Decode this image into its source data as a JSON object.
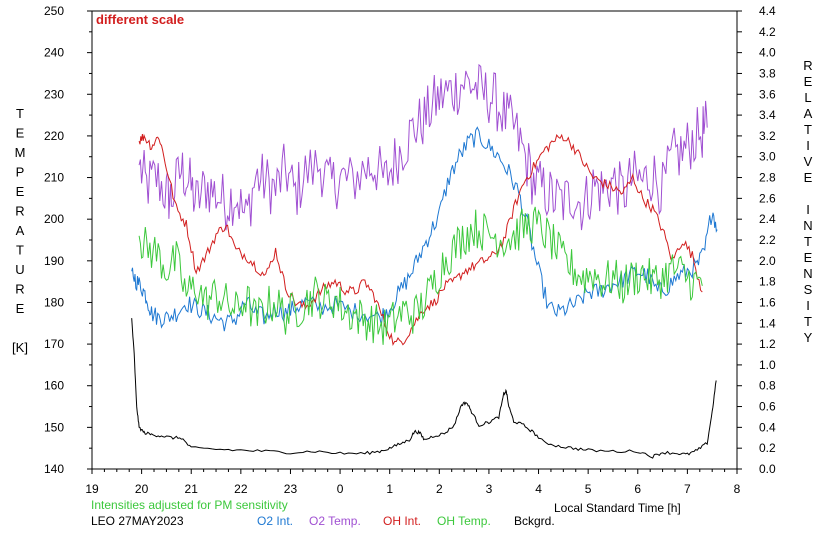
{
  "chart_data": {
    "type": "line",
    "note": "different scale",
    "left_axis": {
      "label_letters": [
        "T",
        "E",
        "M",
        "P",
        "E",
        "R",
        "A",
        "T",
        "U",
        "R",
        "E",
        "",
        "[K]"
      ],
      "range": [
        140,
        250
      ],
      "ticks": [
        140,
        150,
        160,
        170,
        180,
        190,
        200,
        210,
        220,
        230,
        240,
        250
      ]
    },
    "right_axis": {
      "label_letters": [
        "R",
        "E",
        "L",
        "A",
        "T",
        "I",
        "V",
        "E",
        "",
        "I",
        "N",
        "T",
        "E",
        "N",
        "S",
        "I",
        "T",
        "Y"
      ],
      "range": [
        0.0,
        4.4
      ],
      "ticks": [
        "0.0",
        "0.2",
        "0.4",
        "0.6",
        "0.8",
        "1.0",
        "1.2",
        "1.4",
        "1.6",
        "1.8",
        "2.0",
        "2.2",
        "2.4",
        "2.6",
        "2.8",
        "3.0",
        "3.2",
        "3.4",
        "3.6",
        "3.8",
        "4.0",
        "4.2",
        "4.4"
      ]
    },
    "x_axis": {
      "label": "Local Standard Time [h]",
      "range": [
        19,
        32
      ],
      "tick_labels": [
        "19",
        "20",
        "21",
        "22",
        "23",
        "0",
        "1",
        "2",
        "3",
        "4",
        "5",
        "6",
        "7",
        "8"
      ]
    },
    "footer": {
      "pm_note": "Intensities adjusted for PM sensitivity",
      "station_date": "LEO 27MAY2023",
      "legend": [
        {
          "name": "O2 Int.",
          "color": "#1e78d2"
        },
        {
          "name": "O2 Temp.",
          "color": "#a050d2"
        },
        {
          "name": "OH Int.",
          "color": "#d21e1e"
        },
        {
          "name": "OH Temp.",
          "color": "#3cc83c"
        },
        {
          "name": "Bckgrd.",
          "color": "#000000"
        }
      ]
    },
    "series": [
      {
        "name": "O2 Temp.",
        "axis": "left",
        "color": "#a050d2",
        "x": [
          19.95,
          20.1,
          20.3,
          20.5,
          20.6,
          20.8,
          20.95,
          21.1,
          21.3,
          21.5,
          21.7,
          21.9,
          22.1,
          22.3,
          22.5,
          22.7,
          22.9,
          23.1,
          23.3,
          23.6,
          23.8,
          24.0,
          24.2,
          24.5,
          24.7,
          24.9,
          25.1,
          25.3,
          25.5,
          25.7,
          25.9,
          26.1,
          26.3,
          26.5,
          26.7,
          26.9,
          27.1,
          27.3,
          27.5,
          27.7,
          27.9,
          28.1,
          28.3,
          28.5,
          28.7,
          28.9,
          29.1,
          29.3,
          29.5,
          29.7,
          29.9,
          30.1,
          30.3,
          30.5,
          30.7,
          30.9,
          31.1,
          31.3,
          31.4
        ],
        "y": [
          213,
          208,
          210,
          206,
          205,
          212,
          209,
          204,
          208,
          206,
          204,
          206,
          200,
          210,
          209,
          207,
          212,
          206,
          211,
          213,
          208,
          210,
          209,
          212,
          213,
          209,
          214,
          218,
          222,
          224,
          228,
          230,
          231,
          233,
          232,
          230,
          229,
          225,
          222,
          216,
          209,
          207,
          205,
          204,
          206,
          203,
          208,
          207,
          209,
          206,
          210,
          209,
          211,
          207,
          215,
          216,
          219,
          221,
          222
        ]
      },
      {
        "name": "O2 Int.",
        "axis": "right",
        "color": "#1e78d2",
        "x": [
          19.8,
          19.9,
          20.0,
          20.1,
          20.2,
          20.35,
          20.5,
          20.7,
          20.9,
          21.1,
          21.3,
          21.5,
          21.7,
          21.9,
          22.1,
          22.3,
          22.5,
          22.7,
          22.9,
          23.1,
          23.3,
          23.6,
          23.9,
          24.2,
          24.5,
          24.8,
          25.0,
          25.2,
          25.4,
          25.6,
          25.8,
          26.0,
          26.2,
          26.4,
          26.6,
          26.8,
          27.0,
          27.2,
          27.4,
          27.6,
          27.8,
          28.0,
          28.2,
          28.4,
          28.6,
          28.8,
          29.0,
          29.2,
          29.4,
          29.6,
          29.8,
          30.0,
          30.2,
          30.4,
          30.6,
          30.8,
          31.0,
          31.2,
          31.35,
          31.5,
          31.6
        ],
        "y": [
          1.9,
          1.8,
          1.75,
          1.65,
          1.5,
          1.45,
          1.45,
          1.5,
          1.6,
          1.55,
          1.5,
          1.45,
          1.4,
          1.45,
          1.6,
          1.5,
          1.45,
          1.55,
          1.5,
          1.55,
          1.6,
          1.55,
          1.58,
          1.52,
          1.5,
          1.45,
          1.55,
          1.7,
          1.85,
          2.05,
          2.25,
          2.45,
          2.8,
          3.0,
          3.15,
          3.2,
          3.1,
          3.0,
          2.85,
          2.65,
          2.3,
          1.9,
          1.55,
          1.5,
          1.55,
          1.6,
          1.7,
          1.7,
          1.75,
          1.8,
          1.85,
          1.9,
          1.85,
          1.7,
          1.75,
          1.85,
          1.9,
          1.95,
          2.1,
          2.5,
          2.3
        ]
      },
      {
        "name": "OH Int.",
        "axis": "right",
        "color": "#d21e1e",
        "x": [
          19.95,
          20.05,
          20.2,
          20.35,
          20.5,
          20.7,
          20.9,
          21.1,
          21.3,
          21.5,
          21.7,
          21.9,
          22.1,
          22.3,
          22.5,
          22.7,
          22.9,
          23.1,
          23.3,
          23.5,
          23.7,
          23.9,
          24.1,
          24.3,
          24.5,
          24.7,
          24.9,
          25.1,
          25.3,
          25.5,
          25.7,
          25.9,
          26.1,
          26.3,
          26.5,
          26.7,
          26.9,
          27.1,
          27.3,
          27.5,
          27.7,
          27.9,
          28.1,
          28.3,
          28.5,
          28.7,
          28.9,
          29.1,
          29.3,
          29.5,
          29.7,
          29.9,
          30.1,
          30.3,
          30.5,
          30.7,
          30.9,
          31.1,
          31.3
        ],
        "y": [
          3.15,
          3.2,
          3.1,
          3.2,
          2.9,
          2.5,
          2.35,
          1.9,
          2.05,
          2.25,
          2.35,
          2.1,
          2.05,
          1.95,
          1.85,
          2.1,
          1.75,
          1.6,
          1.55,
          1.65,
          1.75,
          1.8,
          1.72,
          1.7,
          1.8,
          1.65,
          1.4,
          1.2,
          1.25,
          1.4,
          1.55,
          1.6,
          1.75,
          1.8,
          1.9,
          1.95,
          2.0,
          2.05,
          2.2,
          2.5,
          2.75,
          2.9,
          3.05,
          3.15,
          3.2,
          3.1,
          2.95,
          2.8,
          2.75,
          2.7,
          2.65,
          2.8,
          2.6,
          2.5,
          2.3,
          2.0,
          2.2,
          2.05,
          1.7
        ]
      },
      {
        "name": "OH Temp.",
        "axis": "left",
        "color": "#3cc83c",
        "x": [
          19.95,
          20.1,
          20.3,
          20.5,
          20.7,
          20.9,
          21.1,
          21.3,
          21.5,
          21.7,
          21.9,
          22.1,
          22.3,
          22.5,
          22.7,
          22.9,
          23.1,
          23.3,
          23.5,
          23.7,
          23.9,
          24.1,
          24.3,
          24.5,
          24.7,
          24.9,
          25.1,
          25.3,
          25.5,
          25.7,
          25.9,
          26.1,
          26.3,
          26.5,
          26.7,
          26.9,
          27.1,
          27.3,
          27.5,
          27.7,
          27.9,
          28.1,
          28.3,
          28.5,
          28.7,
          28.9,
          29.1,
          29.3,
          29.5,
          29.7,
          29.9,
          30.1,
          30.3,
          30.5,
          30.7,
          30.9,
          31.1,
          31.3
        ],
        "y": [
          196,
          193,
          192,
          188,
          190,
          182,
          184,
          180,
          182,
          180,
          178,
          181,
          176,
          179,
          180,
          177,
          178,
          180,
          182,
          180,
          181,
          178,
          177,
          176,
          175,
          174,
          176,
          178,
          177,
          180,
          185,
          190,
          193,
          196,
          198,
          197,
          196,
          195,
          196,
          198,
          199,
          197,
          194,
          190,
          188,
          186,
          187,
          185,
          186,
          184,
          186,
          187,
          185,
          186,
          188,
          187,
          185,
          184
        ]
      },
      {
        "name": "Bckgrd.",
        "axis": "right",
        "color": "#000000",
        "x": [
          19.8,
          19.85,
          19.9,
          19.95,
          20.05,
          20.2,
          20.4,
          20.6,
          20.8,
          21.0,
          21.5,
          22.0,
          22.5,
          23.0,
          23.5,
          24.0,
          24.5,
          24.8,
          25.0,
          25.2,
          25.4,
          25.5,
          25.6,
          25.7,
          25.9,
          26.1,
          26.3,
          26.45,
          26.55,
          26.65,
          26.8,
          27.0,
          27.2,
          27.3,
          27.35,
          27.4,
          27.5,
          27.7,
          27.9,
          28.1,
          28.4,
          28.7,
          29.0,
          29.5,
          30.0,
          30.3,
          30.5,
          30.8,
          31.0,
          31.2,
          31.4,
          31.5,
          31.58
        ],
        "y": [
          1.45,
          1.1,
          0.6,
          0.4,
          0.35,
          0.33,
          0.32,
          0.3,
          0.3,
          0.2,
          0.19,
          0.18,
          0.17,
          0.16,
          0.17,
          0.15,
          0.15,
          0.17,
          0.2,
          0.24,
          0.28,
          0.36,
          0.35,
          0.28,
          0.32,
          0.34,
          0.42,
          0.62,
          0.64,
          0.55,
          0.42,
          0.45,
          0.5,
          0.72,
          0.75,
          0.6,
          0.46,
          0.42,
          0.35,
          0.26,
          0.22,
          0.2,
          0.18,
          0.17,
          0.17,
          0.12,
          0.16,
          0.15,
          0.14,
          0.18,
          0.25,
          0.55,
          0.85
        ]
      }
    ]
  }
}
